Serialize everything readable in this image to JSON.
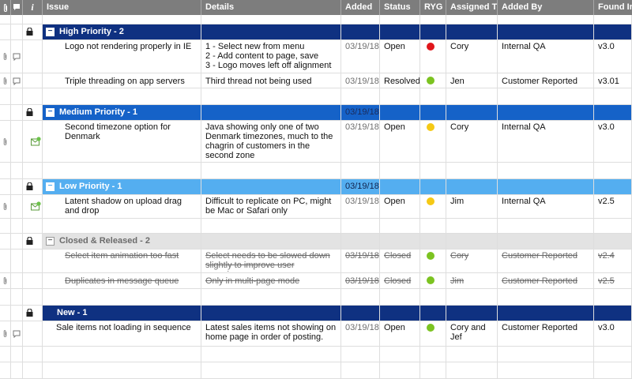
{
  "header": {
    "attach_icon": "paperclip-icon",
    "comment_icon": "comment-icon",
    "info_icon": "info-icon",
    "info_glyph": "i",
    "issue": "Issue",
    "details": "Details",
    "added": "Added",
    "status": "Status",
    "ryg": "RYG",
    "assigned_to": "Assigned To",
    "added_by": "Added By",
    "found_in": "Found In"
  },
  "colors": {
    "red": "#e0161b",
    "green": "#7cc321",
    "yellow": "#f5c915",
    "high": "#0f3181",
    "medium": "#1562c8",
    "low": "#54aef0",
    "closed": "#e3e3e3"
  },
  "groups": {
    "high": {
      "title": "High Priority - 2",
      "toggle": "−"
    },
    "medium": {
      "title": "Medium Priority - 1",
      "added": "03/19/18",
      "toggle": "−"
    },
    "low": {
      "title": "Low Priority - 1",
      "added": "03/19/18",
      "toggle": "−"
    },
    "closed": {
      "title": "Closed & Released - 2",
      "toggle": "−"
    },
    "new": {
      "title": "New - 1"
    }
  },
  "rows": [
    {
      "issue": "Logo not rendering properly in IE",
      "details": "1 - Select new from menu\n2 - Add content to page, save\n3 - Logo moves left off alignment",
      "added": "03/19/18",
      "status": "Open",
      "ryg": "red",
      "assigned": "Cory",
      "added_by": "Internal QA",
      "found_in": "v3.0"
    },
    {
      "issue": "Triple threading on app servers",
      "details": "Third thread not being used",
      "added": "03/19/18",
      "status": "Resolved",
      "ryg": "green",
      "assigned": "Jen",
      "added_by": "Customer Reported",
      "found_in": "v3.01"
    },
    {
      "issue": "Second timezone option for Denmark",
      "details": "Java showing only one of two Denmark timezones, much to the chagrin of customers in the second zone",
      "added": "03/19/18",
      "status": "Open",
      "ryg": "yellow",
      "assigned": "Cory",
      "added_by": "Internal QA",
      "found_in": "v3.0"
    },
    {
      "issue": "Latent shadow on upload drag and drop",
      "details": "Difficult to replicate on PC, might be Mac or Safari only",
      "added": "03/19/18",
      "status": "Open",
      "ryg": "yellow",
      "assigned": "Jim",
      "added_by": "Internal QA",
      "found_in": "v2.5"
    },
    {
      "issue": "Select item animation too fast",
      "details": "Select needs to be slowed down slightly to improve user experience",
      "added": "03/19/18",
      "status": "Closed",
      "ryg": "green",
      "assigned": "Cory",
      "added_by": "Customer Reported",
      "found_in": "v2.4"
    },
    {
      "issue": "Duplicates in message queue",
      "details": "Only in multi-page mode",
      "added": "03/19/18",
      "status": "Closed",
      "ryg": "green",
      "assigned": "Jim",
      "added_by": "Customer Reported",
      "found_in": "v2.5"
    },
    {
      "issue": "Sale items not loading in sequence",
      "details": "Latest sales items not showing on home page in order of posting.",
      "added": "03/19/18",
      "status": "Open",
      "ryg": "green",
      "assigned": "Cory and Jef",
      "added_by": "Customer Reported",
      "found_in": "v3.0"
    }
  ]
}
